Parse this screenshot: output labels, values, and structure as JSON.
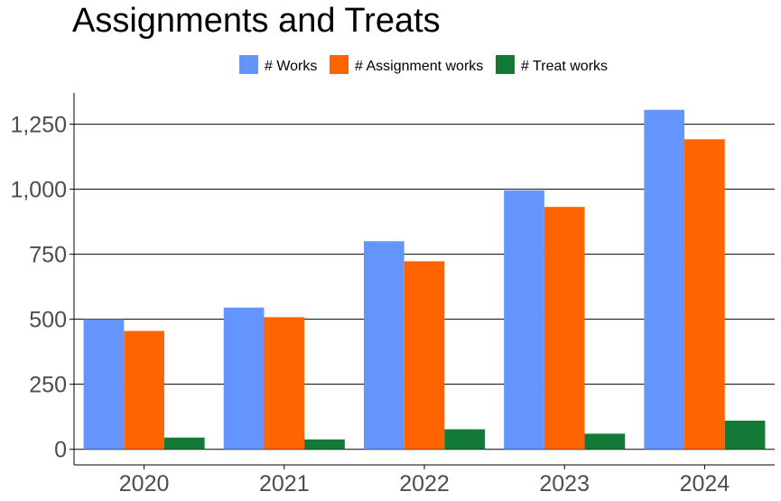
{
  "chart_data": {
    "type": "bar",
    "title": "Assignments and Treats",
    "xlabel": "",
    "ylabel": "",
    "categories": [
      "2020",
      "2021",
      "2022",
      "2023",
      "2024"
    ],
    "series": [
      {
        "name": "# Works",
        "color": "#6495FF",
        "values": [
          500,
          545,
          800,
          995,
          1305
        ]
      },
      {
        "name": "# Assignment works",
        "color": "#FF6400",
        "values": [
          455,
          508,
          723,
          932,
          1192
        ]
      },
      {
        "name": "# Treat works",
        "color": "#127A36",
        "values": [
          45,
          38,
          77,
          60,
          110
        ]
      }
    ],
    "ylim": [
      -60,
      1370
    ],
    "y_ticks": [
      0,
      250,
      500,
      750,
      1000,
      1250
    ],
    "y_tick_labels": [
      "0",
      "250",
      "500",
      "750",
      "1,000",
      "1,250"
    ],
    "grid": "horizontal major lines",
    "legend_position": "top"
  }
}
